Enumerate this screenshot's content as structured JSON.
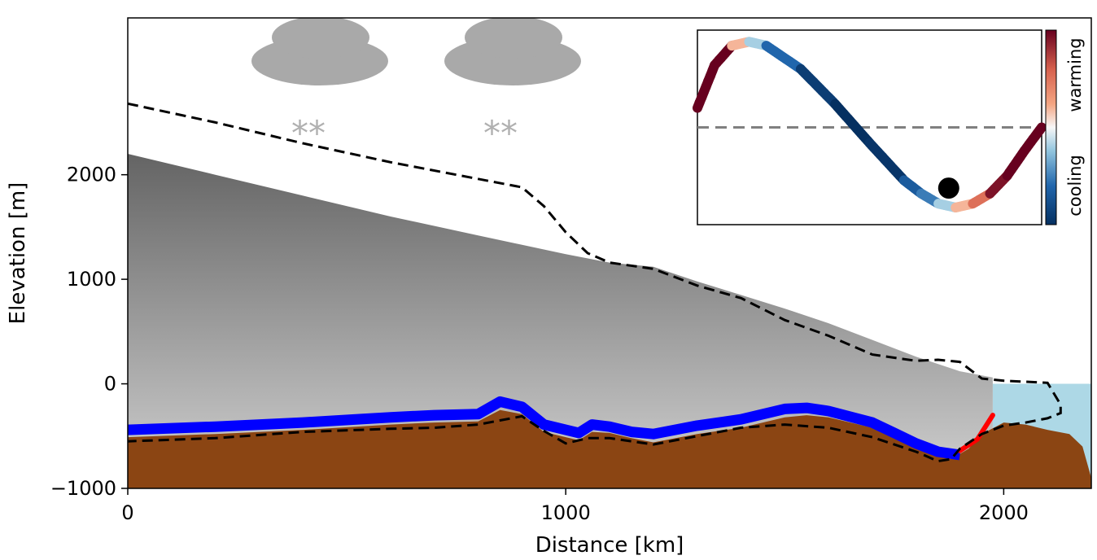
{
  "chart_data": {
    "type": "area",
    "title": "",
    "xlabel": "Distance [km]",
    "ylabel": "Elevation [m]",
    "xlim": [
      0,
      2200
    ],
    "ylim": [
      -1000,
      3500
    ],
    "xticks": [
      0,
      1000,
      2000
    ],
    "xtick_labels": [
      "0",
      "1000",
      "2000"
    ],
    "yticks": [
      -1000,
      0,
      1000,
      2000
    ],
    "ytick_labels": [
      "−1000",
      "0",
      "1000",
      "2000"
    ],
    "grid": false,
    "sea_level_m": 0,
    "series": [
      {
        "kind": "ice_surface",
        "x": [
          0,
          200,
          400,
          600,
          800,
          1000,
          1100,
          1200,
          1300,
          1400,
          1500,
          1600,
          1700,
          1800,
          1900,
          1975
        ],
        "y": [
          2200,
          2000,
          1800,
          1600,
          1420,
          1240,
          1160,
          1120,
          980,
          850,
          720,
          580,
          420,
          260,
          120,
          60
        ]
      },
      {
        "kind": "ice_base_grounded",
        "x": [
          0,
          200,
          400,
          600,
          700,
          800,
          850,
          900,
          950,
          1000,
          1030,
          1060,
          1100,
          1150,
          1200,
          1300,
          1400,
          1500,
          1550,
          1600,
          1700,
          1750,
          1800,
          1850,
          1900
        ],
        "y": [
          -440,
          -410,
          -370,
          -320,
          -300,
          -290,
          -170,
          -220,
          -390,
          -440,
          -470,
          -390,
          -410,
          -460,
          -480,
          -400,
          -340,
          -240,
          -230,
          -260,
          -370,
          -470,
          -570,
          -650,
          -680
        ]
      },
      {
        "kind": "bedrock",
        "x": [
          0,
          200,
          400,
          600,
          700,
          800,
          850,
          900,
          950,
          1000,
          1030,
          1060,
          1100,
          1150,
          1200,
          1300,
          1400,
          1500,
          1550,
          1600,
          1700,
          1750,
          1800,
          1850,
          1880,
          1920,
          1950,
          2000,
          2050,
          2100,
          2150,
          2180,
          2200
        ],
        "y": [
          -510,
          -480,
          -440,
          -390,
          -370,
          -360,
          -250,
          -290,
          -460,
          -510,
          -540,
          -460,
          -470,
          -520,
          -560,
          -480,
          -420,
          -320,
          -300,
          -320,
          -420,
          -520,
          -610,
          -690,
          -720,
          -620,
          -480,
          -370,
          -390,
          -440,
          -480,
          -600,
          -900
        ]
      },
      {
        "kind": "paleo_ice_outline_dashed",
        "x": [
          0,
          200,
          400,
          600,
          800,
          900,
          950,
          1000,
          1050,
          1100,
          1200,
          1300,
          1400,
          1500,
          1600,
          1700,
          1800,
          1850,
          1900,
          1950,
          2000,
          2050,
          2100,
          2130,
          2130,
          2100,
          2050,
          2000,
          1950,
          1900,
          1880,
          1850,
          1800,
          1700,
          1600,
          1500,
          1400,
          1300,
          1200,
          1100,
          1050,
          1000,
          950,
          900,
          800,
          700,
          600,
          400,
          200,
          0
        ],
        "y": [
          2680,
          2500,
          2300,
          2120,
          1960,
          1880,
          1700,
          1450,
          1250,
          1160,
          1100,
          940,
          820,
          610,
          460,
          280,
          220,
          230,
          210,
          50,
          30,
          20,
          10,
          -200,
          -280,
          -330,
          -370,
          -400,
          -480,
          -620,
          -720,
          -740,
          -650,
          -510,
          -420,
          -390,
          -420,
          -500,
          -580,
          -520,
          -520,
          -570,
          -450,
          -310,
          -390,
          -420,
          -430,
          -460,
          -520,
          -550
        ]
      }
    ],
    "annotations": {
      "snow_symbols": [
        "**",
        "**"
      ],
      "grounding_zone_highlight_color": "#ff0000",
      "basal_water_color": "#0000ff"
    },
    "inset": {
      "type": "line",
      "xlim": [
        0,
        1
      ],
      "ylim": [
        -1.25,
        1.25
      ],
      "reference_line_y": 0,
      "curve_x": [
        0,
        0.05,
        0.1,
        0.15,
        0.2,
        0.3,
        0.4,
        0.5,
        0.6,
        0.65,
        0.7,
        0.75,
        0.8,
        0.85,
        0.9,
        0.95,
        1
      ],
      "curve_y": [
        0.25,
        0.8,
        1.05,
        1.1,
        1.05,
        0.75,
        0.3,
        -0.2,
        -0.68,
        -0.85,
        -0.98,
        -1.03,
        -0.98,
        -0.85,
        -0.62,
        -0.3,
        0
      ],
      "marker_point": [
        0.73,
        -0.78
      ],
      "colorbar_labels": [
        "warming",
        "cooling"
      ]
    },
    "colors": {
      "ice_top": "#646464",
      "ice_bottom": "#d2d2d2",
      "bedrock": "#8b4513",
      "ocean": "#add8e6",
      "water_film": "#0000ff",
      "highlight": "#ff0000",
      "clouds": "#a9a9a9",
      "snow": "#b0b0b0",
      "dashed_outline": "#000000",
      "inset_reference_line": "#808080"
    }
  }
}
